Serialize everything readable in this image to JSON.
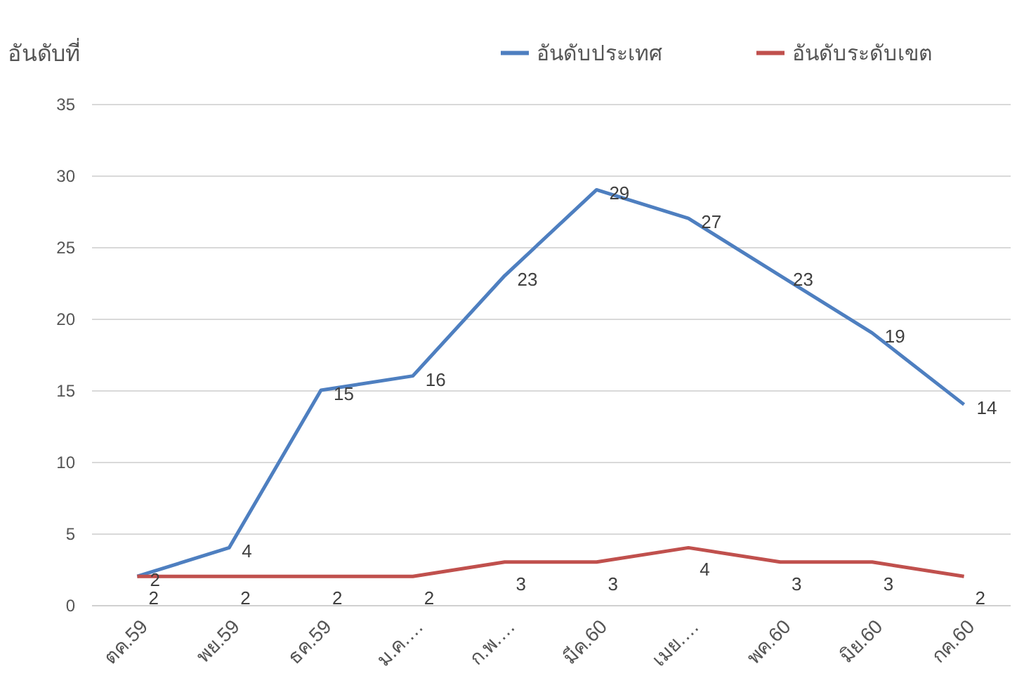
{
  "chart_data": {
    "type": "line",
    "ylabel": "อันดับที่",
    "categories": [
      "ตค.59",
      "พย.59",
      "ธค.59",
      "ม.ค.…",
      "ก.พ.…",
      "มีค.60",
      "เมย.…",
      "พค.60",
      "มิย.60",
      "กค.60"
    ],
    "series": [
      {
        "name": "อันดับประเทศ",
        "color": "#4e7fc0",
        "values": [
          2,
          4,
          15,
          16,
          23,
          29,
          27,
          23,
          19,
          14
        ]
      },
      {
        "name": "อันดับระดับเขต",
        "color": "#c0504d",
        "values": [
          2,
          2,
          2,
          2,
          3,
          3,
          4,
          3,
          3,
          2
        ]
      }
    ],
    "ylim": [
      0,
      35
    ],
    "yticks": [
      0,
      5,
      10,
      15,
      20,
      25,
      30,
      35
    ],
    "grid": "y",
    "legend": "top right",
    "data_labels": true
  }
}
